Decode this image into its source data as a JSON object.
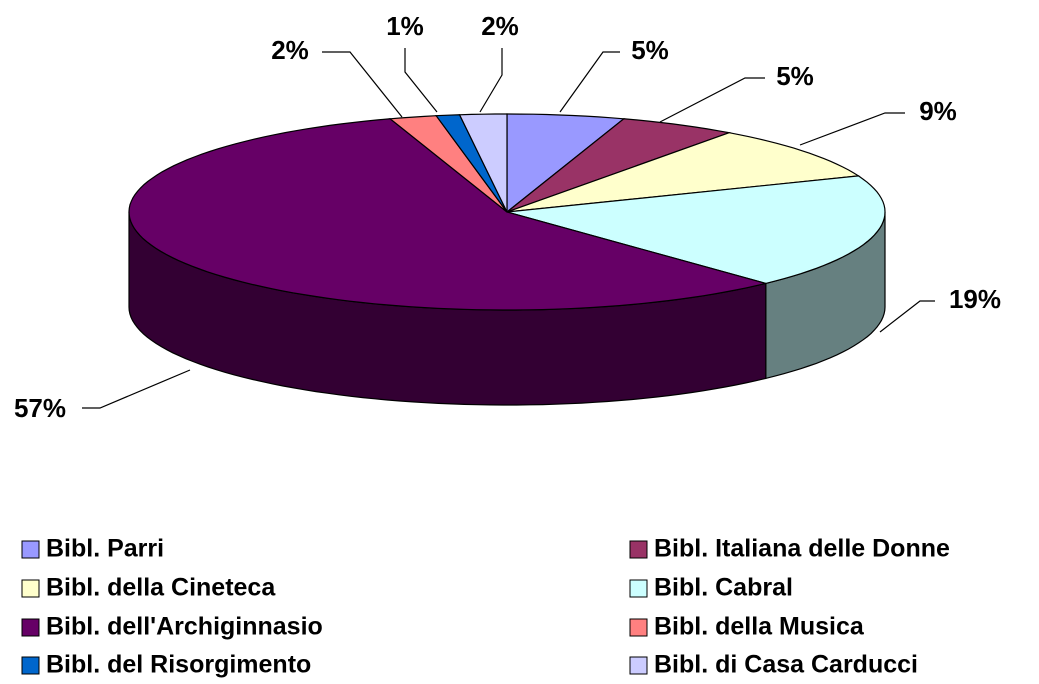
{
  "chart_data": {
    "type": "pie3d",
    "categories": [
      "Bibl. Parri",
      "Bibl. Italiana delle Donne",
      "Bibl. della Cineteca",
      "Bibl. Cabral",
      "Bibl. dell'Archiginnasio",
      "Bibl. della Musica",
      "Bibl. del Risorgimento",
      "Bibl. di Casa Carducci"
    ],
    "values": [
      5,
      5,
      9,
      19,
      57,
      2,
      1,
      2
    ],
    "value_labels": [
      "5%",
      "5%",
      "9%",
      "19%",
      "57%",
      "2%",
      "1%",
      "2%"
    ],
    "colors": [
      "#9999ff",
      "#993366",
      "#ffffcc",
      "#ccffff",
      "#660066",
      "#ff8080",
      "#0066cc",
      "#ccccff"
    ],
    "legend": "bottom"
  }
}
